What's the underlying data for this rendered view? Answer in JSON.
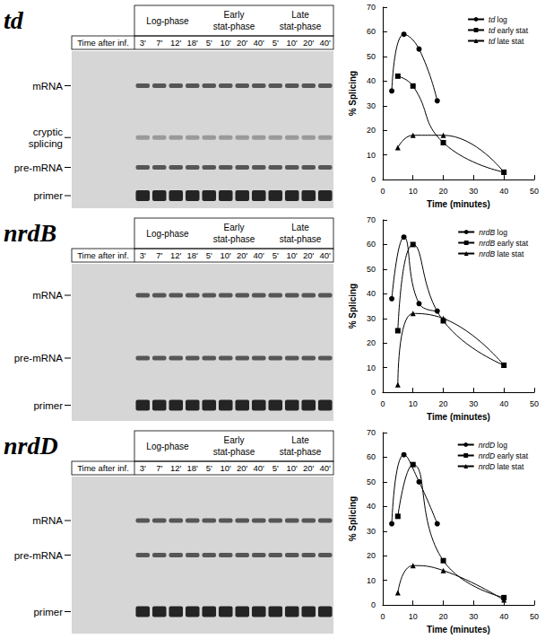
{
  "gels": [
    {
      "title": "td",
      "time_header": "Time after inf.",
      "phases": [
        {
          "label": "Log-phase",
          "lanes": [
            "3'",
            "7'",
            "12'",
            "18'"
          ]
        },
        {
          "label": "Early stat-phase",
          "lanes": [
            "5'",
            "10'",
            "20'",
            "40'"
          ]
        },
        {
          "label": "Late stat-phase",
          "lanes": [
            "5'",
            "10'",
            "20'",
            "40'"
          ]
        }
      ],
      "bands": [
        "mRNA",
        "cryptic splicing",
        "pre-mRNA",
        "primer"
      ]
    },
    {
      "title": "nrdB",
      "time_header": "Time after inf.",
      "phases": [
        {
          "label": "Log-phase",
          "lanes": [
            "3'",
            "7'",
            "12'",
            "18'"
          ]
        },
        {
          "label": "Early stat-phase",
          "lanes": [
            "5'",
            "10'",
            "20'",
            "40'"
          ]
        },
        {
          "label": "Late stat-phase",
          "lanes": [
            "5'",
            "10'",
            "20'",
            "40'"
          ]
        }
      ],
      "bands": [
        "mRNA",
        "pre-mRNA",
        "primer"
      ]
    },
    {
      "title": "nrdD",
      "time_header": "Time after inf.",
      "phases": [
        {
          "label": "Log-phase",
          "lanes": [
            "3'",
            "7'",
            "12'",
            "18'"
          ]
        },
        {
          "label": "Early stat-phase",
          "lanes": [
            "5'",
            "10'",
            "20'",
            "40'"
          ]
        },
        {
          "label": "Late stat-phase",
          "lanes": [
            "5'",
            "10'",
            "20'",
            "40'"
          ]
        }
      ],
      "bands": [
        "mRNA",
        "pre-mRNA",
        "primer"
      ]
    }
  ],
  "chart_data": [
    {
      "type": "line",
      "xlabel": "Time (minutes)",
      "ylabel": "% Splicing",
      "xlim": [
        0,
        50
      ],
      "xticks": [
        0,
        10,
        20,
        30,
        40,
        50
      ],
      "ylim": [
        0,
        70
      ],
      "yticks": [
        0,
        10,
        20,
        30,
        40,
        50,
        60,
        70
      ],
      "legend": "top-right",
      "grid": false,
      "series": [
        {
          "name": "td log",
          "color": "#000000",
          "marker": "circle",
          "x": [
            3,
            7,
            12,
            18
          ],
          "values": [
            36,
            59,
            53,
            32
          ]
        },
        {
          "name": "td early stat",
          "color": "#000000",
          "marker": "square",
          "x": [
            5,
            10,
            20,
            40
          ],
          "values": [
            42,
            38,
            15,
            3
          ]
        },
        {
          "name": "td late stat",
          "color": "#000000",
          "marker": "triangle",
          "x": [
            5,
            10,
            20,
            40
          ],
          "values": [
            13,
            18,
            18,
            3
          ]
        }
      ]
    },
    {
      "type": "line",
      "xlabel": "Time (minutes)",
      "ylabel": "% Splicing",
      "xlim": [
        0,
        50
      ],
      "xticks": [
        0,
        10,
        20,
        30,
        40,
        50
      ],
      "ylim": [
        0,
        70
      ],
      "yticks": [
        0,
        10,
        20,
        30,
        40,
        50,
        60,
        70
      ],
      "legend": "top-right",
      "grid": false,
      "series": [
        {
          "name": "nrdB log",
          "color": "#000000",
          "marker": "circle",
          "x": [
            3,
            7,
            12,
            18
          ],
          "values": [
            38,
            63,
            36,
            33
          ]
        },
        {
          "name": "nrdB early stat",
          "color": "#000000",
          "marker": "square",
          "x": [
            5,
            10,
            20,
            40
          ],
          "values": [
            25,
            60,
            29,
            11
          ]
        },
        {
          "name": "nrdB late stat",
          "color": "#000000",
          "marker": "triangle",
          "x": [
            5,
            10,
            20,
            40
          ],
          "values": [
            3,
            32,
            30,
            11
          ]
        }
      ]
    },
    {
      "type": "line",
      "xlabel": "Time (minutes)",
      "ylabel": "% Splicing",
      "xlim": [
        0,
        50
      ],
      "xticks": [
        0,
        10,
        20,
        30,
        40,
        50
      ],
      "ylim": [
        0,
        70
      ],
      "yticks": [
        0,
        10,
        20,
        30,
        40,
        50,
        60,
        70
      ],
      "legend": "top-right",
      "grid": false,
      "series": [
        {
          "name": "nrdD log",
          "color": "#000000",
          "marker": "circle",
          "x": [
            3,
            7,
            12,
            18
          ],
          "values": [
            33,
            61,
            50,
            33
          ]
        },
        {
          "name": "nrdD early stat",
          "color": "#000000",
          "marker": "square",
          "x": [
            5,
            10,
            20,
            40
          ],
          "values": [
            36,
            57,
            18,
            3
          ]
        },
        {
          "name": "nrdD late stat",
          "color": "#000000",
          "marker": "triangle",
          "x": [
            5,
            10,
            20,
            40
          ],
          "values": [
            5,
            16,
            14,
            2
          ]
        }
      ]
    }
  ]
}
